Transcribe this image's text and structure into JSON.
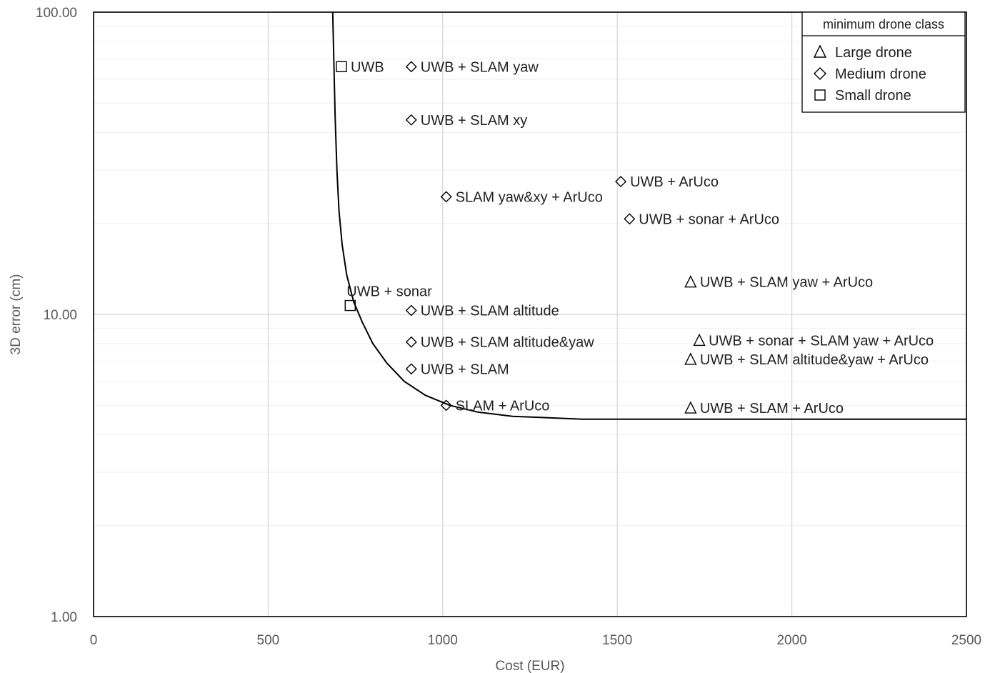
{
  "chart_data": {
    "type": "scatter",
    "xlabel": "Cost (EUR)",
    "ylabel": "3D error (cm)",
    "xlim": [
      0,
      2500
    ],
    "ylim": [
      1,
      100
    ],
    "yscale": "log",
    "x_ticks": [
      "0",
      "500",
      "1000",
      "1500",
      "2000",
      "2500"
    ],
    "y_ticks": [
      "1.00",
      "10.00",
      "100.00"
    ],
    "grid": true,
    "legend": {
      "title": "minimum drone class",
      "position": "top-right",
      "entries": [
        {
          "marker": "triangle",
          "label": "Large drone"
        },
        {
          "marker": "diamond",
          "label": "Medium drone"
        },
        {
          "marker": "square",
          "label": "Small drone"
        }
      ]
    },
    "points": [
      {
        "label": "UWB",
        "x": 710,
        "y": 66,
        "marker": "square"
      },
      {
        "label": "UWB + sonar",
        "x": 735,
        "y": 10.7,
        "marker": "square"
      },
      {
        "label": "UWB + SLAM yaw",
        "x": 910,
        "y": 66,
        "marker": "diamond"
      },
      {
        "label": "UWB + SLAM xy",
        "x": 910,
        "y": 44,
        "marker": "diamond"
      },
      {
        "label": "SLAM yaw&xy + ArUco",
        "x": 1010,
        "y": 24.5,
        "marker": "diamond"
      },
      {
        "label": "UWB + ArUco",
        "x": 1510,
        "y": 27.5,
        "marker": "diamond"
      },
      {
        "label": "UWB + sonar + ArUco",
        "x": 1535,
        "y": 20.7,
        "marker": "diamond"
      },
      {
        "label": "UWB + SLAM altitude",
        "x": 910,
        "y": 10.3,
        "marker": "diamond"
      },
      {
        "label": "UWB + SLAM altitude&yaw",
        "x": 910,
        "y": 8.1,
        "marker": "diamond"
      },
      {
        "label": "UWB + SLAM",
        "x": 910,
        "y": 6.6,
        "marker": "diamond"
      },
      {
        "label": "SLAM + ArUco",
        "x": 1010,
        "y": 5.0,
        "marker": "diamond"
      },
      {
        "label": "UWB + SLAM yaw + ArUco",
        "x": 1710,
        "y": 12.8,
        "marker": "triangle"
      },
      {
        "label": "UWB + sonar + SLAM yaw + ArUco",
        "x": 1735,
        "y": 8.2,
        "marker": "triangle"
      },
      {
        "label": "UWB + SLAM altitude&yaw + ArUco",
        "x": 1710,
        "y": 7.1,
        "marker": "triangle"
      },
      {
        "label": "UWB + SLAM + ArUco",
        "x": 1710,
        "y": 4.9,
        "marker": "triangle"
      }
    ],
    "frontier_curve": {
      "x": [
        685,
        688,
        692,
        697,
        703,
        712,
        725,
        745,
        770,
        800,
        840,
        890,
        950,
        1020,
        1100,
        1200,
        1400,
        1700,
        2000,
        2500
      ],
      "y": [
        100,
        70,
        45,
        30,
        22,
        17,
        13.5,
        11,
        9.4,
        8.0,
        6.9,
        6.0,
        5.4,
        5.0,
        4.75,
        4.6,
        4.5,
        4.5,
        4.5,
        4.5
      ]
    }
  }
}
